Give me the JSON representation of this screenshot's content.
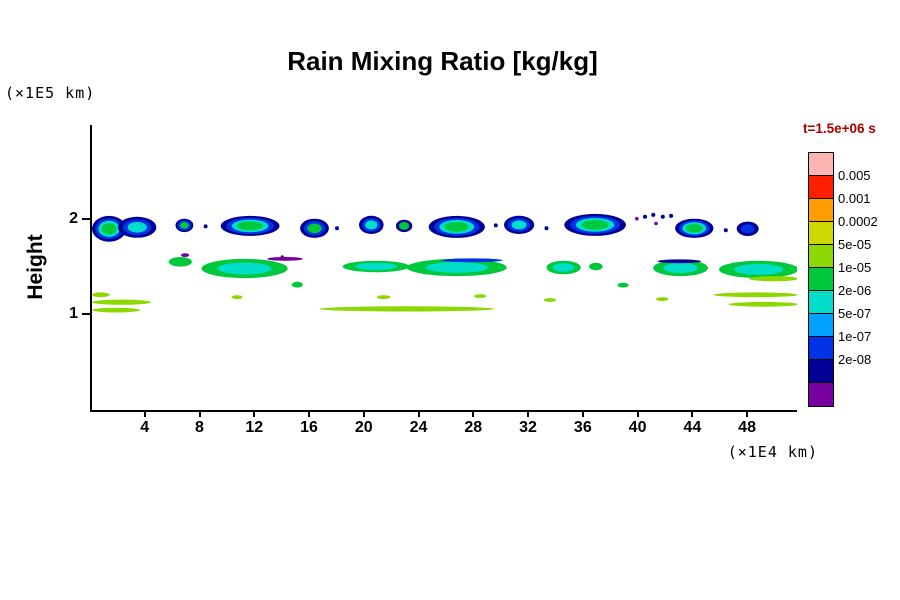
{
  "chart_data": {
    "type": "contour",
    "title": "Rain Mixing Ratio [kg/kg]",
    "time_label": "t=1.5e+06 s",
    "ylabel": "Height",
    "y_unit_label": "(×1E5 km)",
    "x_unit_label": "(×1E4 km)",
    "xlim": [
      0,
      51.5
    ],
    "ylim": [
      0,
      2.98
    ],
    "xticks": [
      4,
      8,
      12,
      16,
      20,
      24,
      28,
      32,
      36,
      40,
      44,
      48
    ],
    "yticks": [
      1,
      2
    ],
    "grid": false,
    "legend_position": "right",
    "levels": [
      "0.005",
      "0.001",
      "0.0002",
      "5e-05",
      "1e-05",
      "2e-06",
      "5e-07",
      "1e-07",
      "2e-08"
    ],
    "palette": [
      "#ffb4b4",
      "#ff1e00",
      "#ff9c00",
      "#cdd800",
      "#8cd800",
      "#00c83c",
      "#00ddc8",
      "#00a0ff",
      "#0032e6",
      "#000096",
      "#7800a0"
    ],
    "features": [
      {
        "x0": 0.0,
        "x1": 2.5,
        "y0": 1.76,
        "y1": 2.03,
        "colors": [
          "#000096",
          "#0032e6",
          "#00ddc8",
          "#00c83c"
        ]
      },
      {
        "x0": 1.9,
        "x1": 4.7,
        "y0": 1.8,
        "y1": 2.02,
        "colors": [
          "#000096",
          "#0032e6",
          "#00ddc8"
        ]
      },
      {
        "x0": 6.1,
        "x1": 7.4,
        "y0": 1.86,
        "y1": 2.0,
        "colors": [
          "#000096",
          "#0032e6",
          "#00c83c"
        ]
      },
      {
        "x0": 9.4,
        "x1": 13.7,
        "y0": 1.82,
        "y1": 2.03,
        "colors": [
          "#000096",
          "#0032e6",
          "#00ddc8",
          "#00c83c"
        ]
      },
      {
        "x0": 15.2,
        "x1": 17.3,
        "y0": 1.8,
        "y1": 2.0,
        "colors": [
          "#000096",
          "#0032e6",
          "#00c83c"
        ]
      },
      {
        "x0": 19.5,
        "x1": 21.3,
        "y0": 1.84,
        "y1": 2.03,
        "colors": [
          "#000096",
          "#0032e6",
          "#00ddc8"
        ]
      },
      {
        "x0": 22.2,
        "x1": 23.4,
        "y0": 1.86,
        "y1": 1.99,
        "colors": [
          "#000096",
          "#00c83c"
        ]
      },
      {
        "x0": 24.6,
        "x1": 28.7,
        "y0": 1.8,
        "y1": 2.03,
        "colors": [
          "#000096",
          "#0032e6",
          "#00ddc8",
          "#00c83c"
        ]
      },
      {
        "x0": 30.1,
        "x1": 32.3,
        "y0": 1.84,
        "y1": 2.03,
        "colors": [
          "#000096",
          "#0032e6",
          "#00ddc8"
        ]
      },
      {
        "x0": 34.5,
        "x1": 39.0,
        "y0": 1.82,
        "y1": 2.05,
        "colors": [
          "#000096",
          "#0032e6",
          "#00ddc8",
          "#00c83c"
        ]
      },
      {
        "x0": 42.6,
        "x1": 45.4,
        "y0": 1.8,
        "y1": 2.0,
        "colors": [
          "#000096",
          "#0032e6",
          "#00ddc8",
          "#00c83c"
        ]
      },
      {
        "x0": 47.1,
        "x1": 48.7,
        "y0": 1.82,
        "y1": 1.97,
        "colors": [
          "#000096",
          "#0032e6"
        ]
      },
      {
        "type": "dots",
        "color": "#000096",
        "r": 2,
        "points": [
          [
            40.4,
            2.02
          ],
          [
            41.0,
            2.04
          ],
          [
            41.7,
            2.02
          ],
          [
            42.3,
            2.03
          ],
          [
            8.3,
            1.92
          ],
          [
            17.9,
            1.9
          ],
          [
            29.5,
            1.93
          ],
          [
            33.2,
            1.9
          ],
          [
            46.3,
            1.88
          ]
        ]
      },
      {
        "type": "dots",
        "color": "#7800a0",
        "r": 1.8,
        "points": [
          [
            41.2,
            1.95
          ],
          [
            39.8,
            2.0
          ],
          [
            13.9,
            1.6
          ]
        ]
      },
      {
        "x0": 5.6,
        "x1": 7.3,
        "y0": 1.5,
        "y1": 1.6,
        "colors": [
          "#00c83c"
        ]
      },
      {
        "x0": 6.5,
        "x1": 7.1,
        "y0": 1.6,
        "y1": 1.64,
        "colors": [
          "#7800a0"
        ]
      },
      {
        "x0": 8.0,
        "x1": 14.3,
        "y0": 1.38,
        "y1": 1.58,
        "colors": [
          "#00c83c",
          "#00ddc8"
        ]
      },
      {
        "x0": 12.8,
        "x1": 15.4,
        "y0": 1.56,
        "y1": 1.6,
        "colors": [
          "#7800a0"
        ]
      },
      {
        "x0": 18.3,
        "x1": 23.2,
        "y0": 1.44,
        "y1": 1.56,
        "colors": [
          "#00c83c",
          "#00ddc8"
        ]
      },
      {
        "x0": 23.0,
        "x1": 30.3,
        "y0": 1.4,
        "y1": 1.58,
        "colors": [
          "#00c83c",
          "#00ddc8"
        ]
      },
      {
        "x0": 25.5,
        "x1": 30.0,
        "y0": 1.545,
        "y1": 1.585,
        "colors": [
          "#0032e6"
        ]
      },
      {
        "x0": 33.2,
        "x1": 35.7,
        "y0": 1.42,
        "y1": 1.56,
        "colors": [
          "#00c83c",
          "#00ddc8"
        ]
      },
      {
        "x0": 36.3,
        "x1": 37.3,
        "y0": 1.46,
        "y1": 1.54,
        "colors": [
          "#00c83c"
        ]
      },
      {
        "x0": 41.0,
        "x1": 45.0,
        "y0": 1.4,
        "y1": 1.57,
        "colors": [
          "#00c83c",
          "#00ddc8"
        ]
      },
      {
        "x0": 41.3,
        "x1": 44.5,
        "y0": 1.535,
        "y1": 1.575,
        "colors": [
          "#000096"
        ]
      },
      {
        "x0": 45.8,
        "x1": 51.6,
        "y0": 1.38,
        "y1": 1.56,
        "colors": [
          "#00c83c",
          "#00ddc8"
        ]
      },
      {
        "x0": 48.0,
        "x1": 51.6,
        "y0": 1.345,
        "y1": 1.4,
        "colors": [
          "#8cd800"
        ]
      },
      {
        "x0": 0.0,
        "x1": 1.3,
        "y0": 1.18,
        "y1": 1.23,
        "colors": [
          "#8cd800"
        ]
      },
      {
        "x0": 0.0,
        "x1": 4.3,
        "y0": 1.1,
        "y1": 1.155,
        "colors": [
          "#8cd800"
        ]
      },
      {
        "x0": 0.0,
        "x1": 3.5,
        "y0": 1.02,
        "y1": 1.07,
        "colors": [
          "#8cd800"
        ]
      },
      {
        "x0": 10.2,
        "x1": 11.0,
        "y0": 1.16,
        "y1": 1.2,
        "colors": [
          "#8cd800"
        ]
      },
      {
        "x0": 14.6,
        "x1": 15.4,
        "y0": 1.28,
        "y1": 1.34,
        "colors": [
          "#00c83c"
        ]
      },
      {
        "x0": 16.6,
        "x1": 29.4,
        "y0": 1.03,
        "y1": 1.085,
        "colors": [
          "#8cd800"
        ]
      },
      {
        "x0": 20.8,
        "x1": 21.8,
        "y0": 1.16,
        "y1": 1.2,
        "colors": [
          "#8cd800"
        ]
      },
      {
        "x0": 27.9,
        "x1": 28.8,
        "y0": 1.17,
        "y1": 1.21,
        "colors": [
          "#8cd800"
        ]
      },
      {
        "x0": 33.0,
        "x1": 33.9,
        "y0": 1.13,
        "y1": 1.17,
        "colors": [
          "#8cd800"
        ]
      },
      {
        "x0": 38.4,
        "x1": 39.2,
        "y0": 1.28,
        "y1": 1.33,
        "colors": [
          "#00c83c"
        ]
      },
      {
        "x0": 41.2,
        "x1": 42.1,
        "y0": 1.14,
        "y1": 1.18,
        "colors": [
          "#8cd800"
        ]
      },
      {
        "x0": 45.4,
        "x1": 51.6,
        "y0": 1.18,
        "y1": 1.23,
        "colors": [
          "#8cd800"
        ]
      },
      {
        "x0": 46.5,
        "x1": 51.6,
        "y0": 1.08,
        "y1": 1.13,
        "colors": [
          "#8cd800"
        ]
      }
    ]
  }
}
